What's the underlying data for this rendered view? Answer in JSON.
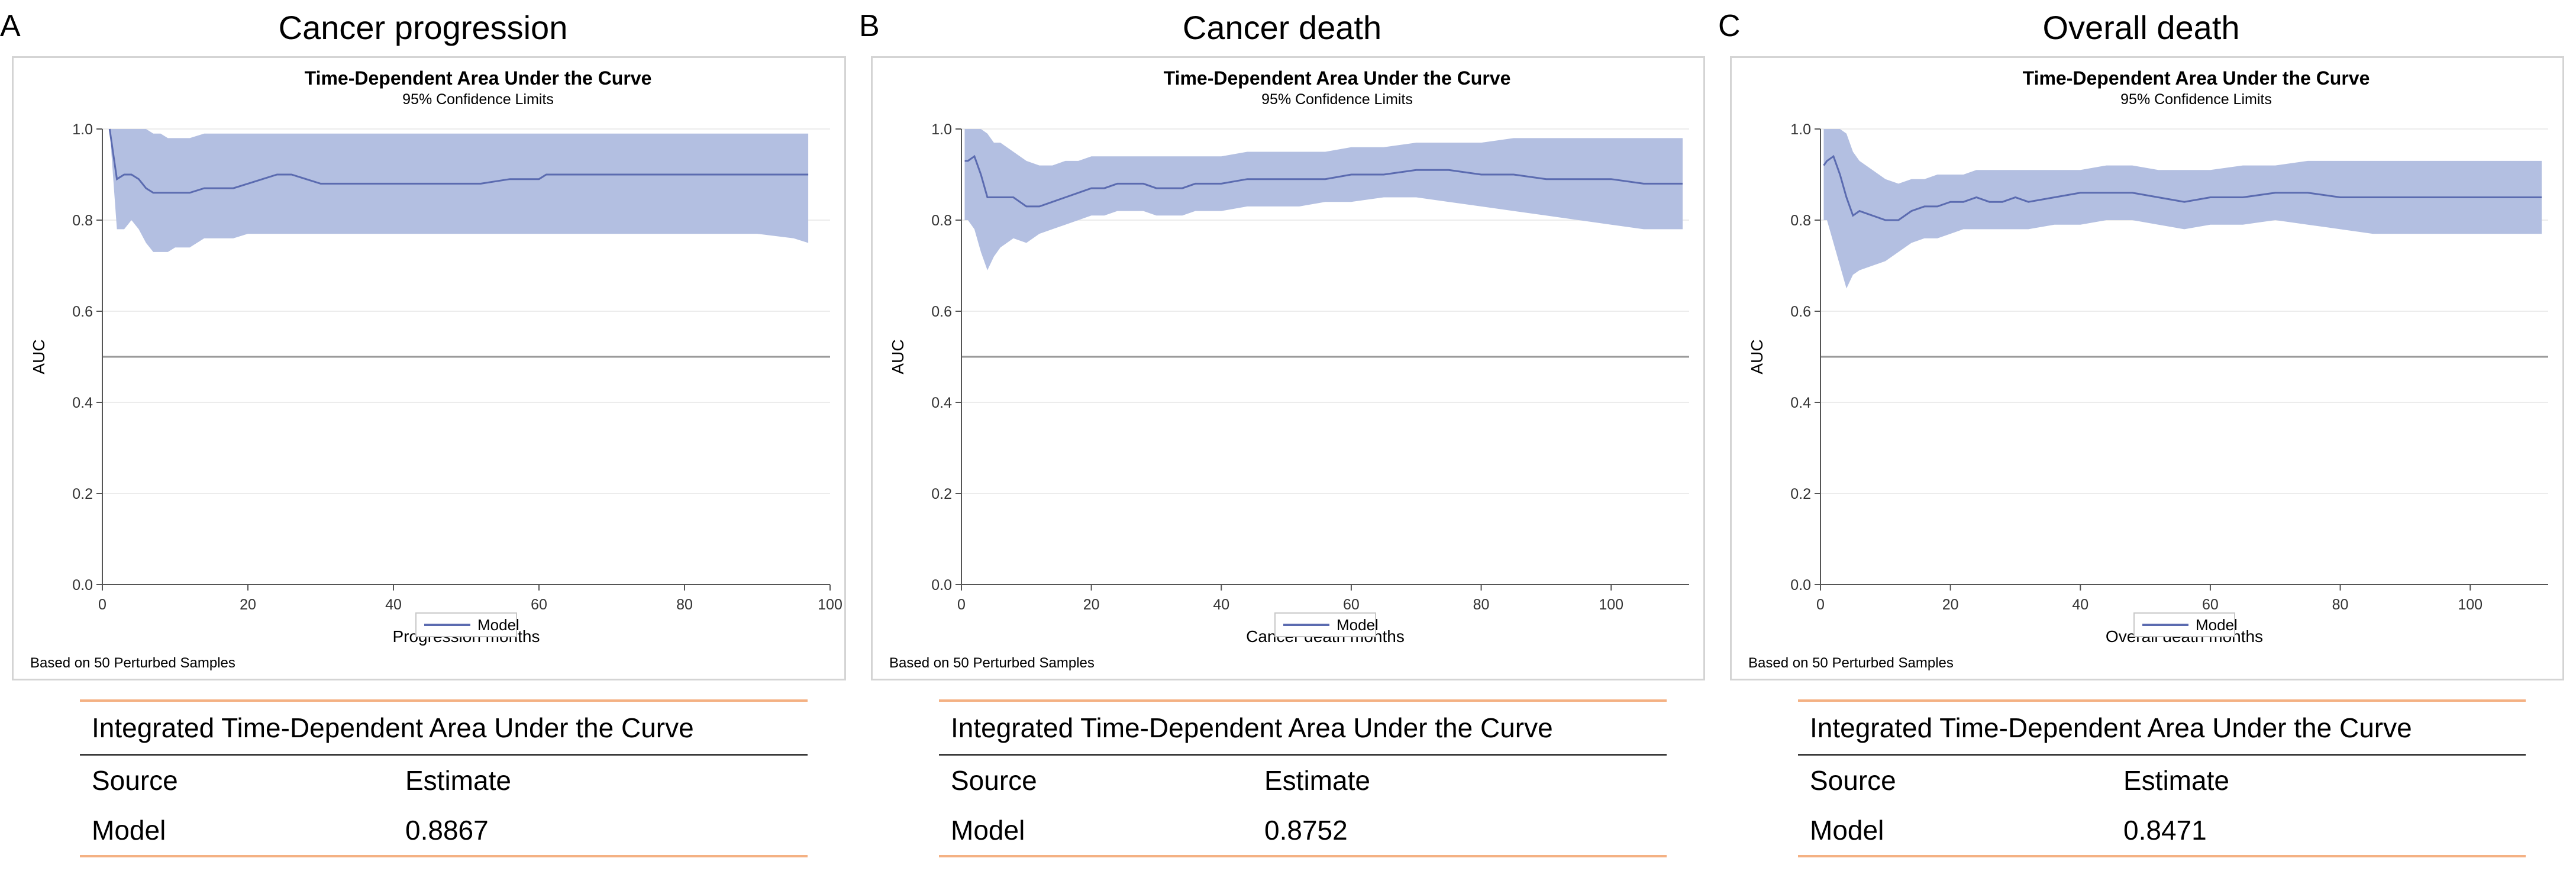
{
  "colors": {
    "band": "#b3bfe1",
    "line": "#5b6bb0",
    "reference": "#9a9a9a",
    "orange_rule": "#f4b183"
  },
  "panels": [
    {
      "letter": "A",
      "heading": "Cancer progression",
      "chart": {
        "type": "area",
        "title": "Time-Dependent Area Under the Curve",
        "subtitle": "95% Confidence Limits",
        "xlabel": "Progression months",
        "ylabel": "AUC",
        "xlim": [
          0,
          100
        ],
        "ylim": [
          0,
          1.0
        ],
        "xticks": [
          0,
          20,
          40,
          60,
          80,
          100
        ],
        "yticks": [
          0.0,
          0.2,
          0.4,
          0.6,
          0.8,
          1.0
        ],
        "ytick_labels": [
          "0.0",
          "0.2",
          "0.4",
          "0.6",
          "0.8",
          "1.0"
        ],
        "reference_line": 0.5,
        "legend": "Model",
        "footnote": "Based on 50 Perturbed Samples",
        "series": [
          {
            "name": "Model",
            "x": [
              1,
              2,
              3,
              4,
              5,
              6,
              7,
              8,
              9,
              10,
              12,
              14,
              16,
              18,
              20,
              22,
              24,
              26,
              28,
              30,
              32,
              34,
              36,
              38,
              40,
              44,
              48,
              52,
              56,
              60,
              61,
              62,
              66,
              70,
              75,
              80,
              85,
              90,
              95,
              97
            ],
            "auc": [
              1.0,
              0.89,
              0.9,
              0.9,
              0.89,
              0.87,
              0.86,
              0.86,
              0.86,
              0.86,
              0.86,
              0.87,
              0.87,
              0.87,
              0.88,
              0.89,
              0.9,
              0.9,
              0.89,
              0.88,
              0.88,
              0.88,
              0.88,
              0.88,
              0.88,
              0.88,
              0.88,
              0.88,
              0.89,
              0.89,
              0.9,
              0.9,
              0.9,
              0.9,
              0.9,
              0.9,
              0.9,
              0.9,
              0.9,
              0.9
            ],
            "lower": [
              1.0,
              0.78,
              0.78,
              0.8,
              0.78,
              0.75,
              0.73,
              0.73,
              0.73,
              0.74,
              0.74,
              0.76,
              0.76,
              0.76,
              0.77,
              0.77,
              0.77,
              0.77,
              0.77,
              0.77,
              0.77,
              0.77,
              0.77,
              0.77,
              0.77,
              0.77,
              0.77,
              0.77,
              0.77,
              0.77,
              0.77,
              0.77,
              0.77,
              0.77,
              0.77,
              0.77,
              0.77,
              0.77,
              0.76,
              0.75
            ],
            "upper": [
              1.0,
              1.0,
              1.0,
              1.0,
              1.0,
              1.0,
              0.99,
              0.99,
              0.98,
              0.98,
              0.98,
              0.99,
              0.99,
              0.99,
              0.99,
              0.99,
              0.99,
              0.99,
              0.99,
              0.99,
              0.99,
              0.99,
              0.99,
              0.99,
              0.99,
              0.99,
              0.99,
              0.99,
              0.99,
              0.99,
              0.99,
              0.99,
              0.99,
              0.99,
              0.99,
              0.99,
              0.99,
              0.99,
              0.99,
              0.99
            ]
          }
        ]
      },
      "integrated": {
        "title": "Integrated Time-Dependent Area Under the Curve",
        "col1": "Source",
        "col2": "Estimate",
        "source": "Model",
        "estimate": "0.8867"
      }
    },
    {
      "letter": "B",
      "heading": "Cancer death",
      "chart": {
        "type": "area",
        "title": "Time-Dependent Area Under the Curve",
        "subtitle": "95% Confidence Limits",
        "xlabel": "Cancer death months",
        "ylabel": "AUC",
        "xlim": [
          0,
          112
        ],
        "ylim": [
          0,
          1.0
        ],
        "xticks": [
          0,
          20,
          40,
          60,
          80,
          100
        ],
        "yticks": [
          0.0,
          0.2,
          0.4,
          0.6,
          0.8,
          1.0
        ],
        "ytick_labels": [
          "0.0",
          "0.2",
          "0.4",
          "0.6",
          "0.8",
          "1.0"
        ],
        "reference_line": 0.5,
        "legend": "Model",
        "footnote": "Based on 50 Perturbed Samples",
        "series": [
          {
            "name": "Model",
            "x": [
              0.5,
              1,
              2,
              3,
              4,
              5,
              6,
              8,
              10,
              12,
              14,
              16,
              18,
              20,
              22,
              24,
              26,
              28,
              30,
              32,
              34,
              36,
              40,
              44,
              48,
              52,
              56,
              60,
              65,
              70,
              75,
              80,
              85,
              90,
              95,
              100,
              105,
              111
            ],
            "auc": [
              0.93,
              0.93,
              0.94,
              0.9,
              0.85,
              0.85,
              0.85,
              0.85,
              0.83,
              0.83,
              0.84,
              0.85,
              0.86,
              0.87,
              0.87,
              0.88,
              0.88,
              0.88,
              0.87,
              0.87,
              0.87,
              0.88,
              0.88,
              0.89,
              0.89,
              0.89,
              0.89,
              0.9,
              0.9,
              0.91,
              0.91,
              0.9,
              0.9,
              0.89,
              0.89,
              0.89,
              0.88,
              0.88
            ],
            "lower": [
              0.8,
              0.8,
              0.78,
              0.73,
              0.69,
              0.72,
              0.74,
              0.76,
              0.75,
              0.77,
              0.78,
              0.79,
              0.8,
              0.81,
              0.81,
              0.82,
              0.82,
              0.82,
              0.81,
              0.81,
              0.81,
              0.82,
              0.82,
              0.83,
              0.83,
              0.83,
              0.84,
              0.84,
              0.85,
              0.85,
              0.84,
              0.83,
              0.82,
              0.81,
              0.8,
              0.79,
              0.78,
              0.78
            ],
            "upper": [
              1.0,
              1.0,
              1.0,
              1.0,
              0.99,
              0.97,
              0.97,
              0.95,
              0.93,
              0.92,
              0.92,
              0.93,
              0.93,
              0.94,
              0.94,
              0.94,
              0.94,
              0.94,
              0.94,
              0.94,
              0.94,
              0.94,
              0.94,
              0.95,
              0.95,
              0.95,
              0.95,
              0.96,
              0.96,
              0.97,
              0.97,
              0.97,
              0.98,
              0.98,
              0.98,
              0.98,
              0.98,
              0.98
            ]
          }
        ]
      },
      "integrated": {
        "title": "Integrated Time-Dependent Area Under the Curve",
        "col1": "Source",
        "col2": "Estimate",
        "source": "Model",
        "estimate": "0.8752"
      }
    },
    {
      "letter": "C",
      "heading": "Overall death",
      "chart": {
        "type": "area",
        "title": "Time-Dependent Area Under the Curve",
        "subtitle": "95% Confidence Limits",
        "xlabel": "Overall death months",
        "ylabel": "AUC",
        "xlim": [
          0,
          112
        ],
        "ylim": [
          0,
          1.0
        ],
        "xticks": [
          0,
          20,
          40,
          60,
          80,
          100
        ],
        "yticks": [
          0.0,
          0.2,
          0.4,
          0.6,
          0.8,
          1.0
        ],
        "ytick_labels": [
          "0.0",
          "0.2",
          "0.4",
          "0.6",
          "0.8",
          "1.0"
        ],
        "reference_line": 0.5,
        "legend": "Model",
        "footnote": "Based on 50 Perturbed Samples",
        "series": [
          {
            "name": "Model",
            "x": [
              0.5,
              1,
              2,
              3,
              4,
              5,
              6,
              8,
              10,
              12,
              14,
              16,
              18,
              20,
              22,
              24,
              26,
              28,
              30,
              32,
              36,
              40,
              44,
              48,
              52,
              56,
              60,
              65,
              70,
              75,
              80,
              85,
              90,
              95,
              100,
              105,
              111
            ],
            "auc": [
              0.92,
              0.93,
              0.94,
              0.9,
              0.85,
              0.81,
              0.82,
              0.81,
              0.8,
              0.8,
              0.82,
              0.83,
              0.83,
              0.84,
              0.84,
              0.85,
              0.84,
              0.84,
              0.85,
              0.84,
              0.85,
              0.86,
              0.86,
              0.86,
              0.85,
              0.84,
              0.85,
              0.85,
              0.86,
              0.86,
              0.85,
              0.85,
              0.85,
              0.85,
              0.85,
              0.85,
              0.85
            ],
            "lower": [
              0.8,
              0.8,
              0.75,
              0.7,
              0.65,
              0.68,
              0.69,
              0.7,
              0.71,
              0.73,
              0.75,
              0.76,
              0.76,
              0.77,
              0.78,
              0.78,
              0.78,
              0.78,
              0.78,
              0.78,
              0.79,
              0.79,
              0.8,
              0.8,
              0.79,
              0.78,
              0.79,
              0.79,
              0.8,
              0.79,
              0.78,
              0.77,
              0.77,
              0.77,
              0.77,
              0.77,
              0.77
            ],
            "upper": [
              1.0,
              1.0,
              1.0,
              1.0,
              0.99,
              0.95,
              0.93,
              0.91,
              0.89,
              0.88,
              0.89,
              0.89,
              0.9,
              0.9,
              0.9,
              0.91,
              0.91,
              0.91,
              0.91,
              0.91,
              0.91,
              0.91,
              0.92,
              0.92,
              0.91,
              0.91,
              0.91,
              0.92,
              0.92,
              0.93,
              0.93,
              0.93,
              0.93,
              0.93,
              0.93,
              0.93,
              0.93
            ]
          }
        ]
      },
      "integrated": {
        "title": "Integrated Time-Dependent Area Under the Curve",
        "col1": "Source",
        "col2": "Estimate",
        "source": "Model",
        "estimate": "0.8471"
      }
    }
  ]
}
